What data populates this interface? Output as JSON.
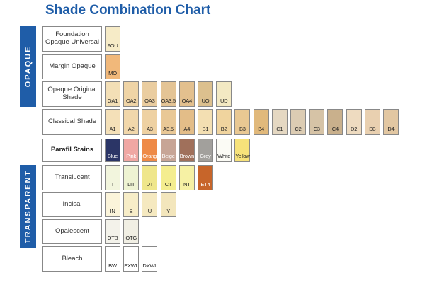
{
  "title": "Shade Combination Chart",
  "side_labels": {
    "opaque": "OPAQUE",
    "transparent": "TRANSPARENT"
  },
  "rows": [
    {
      "label": "Foundation Opaque Universal",
      "bold": false,
      "cells": [
        {
          "code": "FOU",
          "color": "#f6ebc7"
        }
      ]
    },
    {
      "label": "Margin Opaque",
      "bold": false,
      "cells": [
        {
          "code": "MO",
          "color": "#f1b87a"
        }
      ]
    },
    {
      "label": "Opaque Original Shade",
      "bold": false,
      "cells": [
        {
          "code": "OA1",
          "color": "#f3dfb6"
        },
        {
          "code": "OA2",
          "color": "#efd4a6"
        },
        {
          "code": "OA3",
          "color": "#eacda0"
        },
        {
          "code": "OA3.5",
          "color": "#e4c495"
        },
        {
          "code": "OA4",
          "color": "#e3c08e"
        },
        {
          "code": "UO",
          "color": "#dcc08e"
        },
        {
          "code": "UD",
          "color": "#f3e9c3"
        }
      ]
    },
    {
      "label": "Classical Shade",
      "bold": false,
      "cells": [
        {
          "code": "A1",
          "color": "#f4e0b8"
        },
        {
          "code": "A2",
          "color": "#f1d7ab"
        },
        {
          "code": "A3",
          "color": "#eed1a2"
        },
        {
          "code": "A3.5",
          "color": "#e9c896"
        },
        {
          "code": "A4",
          "color": "#e3bd88"
        },
        {
          "code": "B1",
          "color": "#f3dfb2"
        },
        {
          "code": "B2",
          "color": "#f0d49e"
        },
        {
          "code": "B3",
          "color": "#e9c892"
        },
        {
          "code": "B4",
          "color": "#e1b97b"
        },
        {
          "code": "C1",
          "color": "#e5d8c2"
        },
        {
          "code": "C2",
          "color": "#dcccb3"
        },
        {
          "code": "C3",
          "color": "#d6c3a6"
        },
        {
          "code": "C4",
          "color": "#c9b08c"
        },
        {
          "code": "D2",
          "color": "#eedbc0"
        },
        {
          "code": "D3",
          "color": "#e9d0b0"
        },
        {
          "code": "D4",
          "color": "#e2c7a2"
        }
      ]
    },
    {
      "label": "Parafil Stains",
      "bold": true,
      "cells": [
        {
          "code": "Blue",
          "color": "#2b3566",
          "light": true
        },
        {
          "code": "Pink",
          "color": "#f0a7a3",
          "light": true
        },
        {
          "code": "Orange",
          "color": "#ee8a47",
          "light": true
        },
        {
          "code": "Beige",
          "color": "#c7a596",
          "light": true
        },
        {
          "code": "Brown",
          "color": "#a0705b",
          "light": true
        },
        {
          "code": "Grey",
          "color": "#a2a09c",
          "light": true
        },
        {
          "code": "White",
          "color": "#fbfbf5"
        },
        {
          "code": "Yellow",
          "color": "#f7e27a"
        }
      ]
    },
    {
      "label": "Translucent",
      "bold": false,
      "cells": [
        {
          "code": "T",
          "color": "#f2f5dd"
        },
        {
          "code": "LIT",
          "color": "#eef3d3"
        },
        {
          "code": "DT",
          "color": "#efe68b"
        },
        {
          "code": "CT",
          "color": "#f4ed8f"
        },
        {
          "code": "NT",
          "color": "#f6f1a4"
        },
        {
          "code": "ET4",
          "color": "#c7652a",
          "light": true
        }
      ]
    },
    {
      "label": "Incisal",
      "bold": false,
      "cells": [
        {
          "code": "IN",
          "color": "#fbf4da"
        },
        {
          "code": "B",
          "color": "#f7edc8"
        },
        {
          "code": "U",
          "color": "#f5e9c0"
        },
        {
          "code": "Y",
          "color": "#f3e6bc"
        }
      ]
    },
    {
      "label": "Opalescent",
      "bold": false,
      "cells": [
        {
          "code": "OTB",
          "color": "#f3f2ea"
        },
        {
          "code": "OTG",
          "color": "#f1efe4"
        }
      ]
    },
    {
      "label": "Bleach",
      "bold": false,
      "cells": [
        {
          "code": "BW",
          "color": "#ffffff"
        },
        {
          "code": "EXWL",
          "color": "#ffffff"
        },
        {
          "code": "DXWL",
          "color": "#ffffff"
        }
      ]
    }
  ]
}
